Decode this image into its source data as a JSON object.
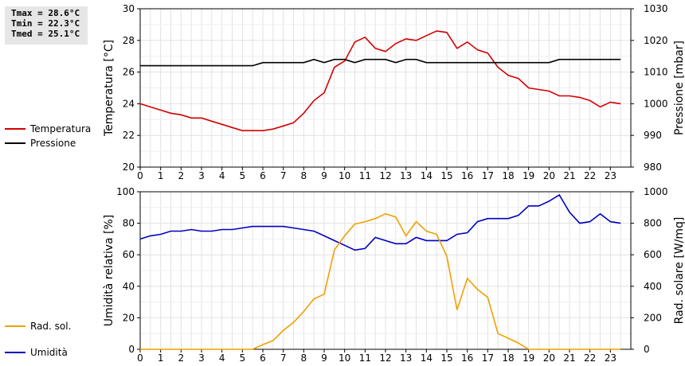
{
  "stats": {
    "tmax": "Tmax = 28.6°C",
    "tmin": "Tmin = 22.3°C",
    "tmed": "Tmed = 25.1°C"
  },
  "chart_data": [
    {
      "type": "line",
      "ylabel": "Temperatura [°C]",
      "y2label": "Pressione [mbar]",
      "xlim": [
        0,
        24
      ],
      "ylim": [
        20,
        30
      ],
      "y2lim": [
        980,
        1030
      ],
      "x_ticks": [
        "0",
        "1",
        "2",
        "3",
        "4",
        "5",
        "6",
        "7",
        "8",
        "9",
        "10",
        "11",
        "12",
        "13",
        "14",
        "15",
        "16",
        "17",
        "18",
        "19",
        "20",
        "21",
        "22",
        "23"
      ],
      "y_ticks": [
        "20",
        "22",
        "24",
        "26",
        "28",
        "30"
      ],
      "y2_ticks": [
        "980",
        "990",
        "1000",
        "1010",
        "1020",
        "1030"
      ],
      "grid": true,
      "legend_position": "left",
      "series": [
        {
          "name": "Temperatura",
          "axis": "left",
          "color": "#d40000",
          "x": [
            0,
            0.5,
            1,
            1.5,
            2,
            2.5,
            3,
            3.5,
            4,
            4.5,
            5,
            5.5,
            6,
            6.5,
            7,
            7.5,
            8,
            8.5,
            9,
            9.5,
            10,
            10.5,
            11,
            11.5,
            12,
            12.5,
            13,
            13.5,
            14,
            14.5,
            15,
            15.5,
            16,
            16.5,
            17,
            17.5,
            18,
            18.5,
            19,
            19.5,
            20,
            20.5,
            21,
            21.5,
            22,
            22.5,
            23,
            23.5
          ],
          "values": [
            24.0,
            23.8,
            23.6,
            23.4,
            23.3,
            23.1,
            23.1,
            22.9,
            22.7,
            22.5,
            22.3,
            22.3,
            22.3,
            22.4,
            22.6,
            22.8,
            23.4,
            24.2,
            24.7,
            26.3,
            26.7,
            27.9,
            28.2,
            27.5,
            27.3,
            27.8,
            28.1,
            28.0,
            28.3,
            28.6,
            28.5,
            27.5,
            27.9,
            27.4,
            27.2,
            26.3,
            25.8,
            25.6,
            25.0,
            24.9,
            24.8,
            24.5,
            24.5,
            24.4,
            24.2,
            23.8,
            24.1,
            24.0
          ]
        },
        {
          "name": "Pressione",
          "axis": "right",
          "color": "#000000",
          "x": [
            0,
            0.5,
            1,
            1.5,
            2,
            2.5,
            3,
            3.5,
            4,
            4.5,
            5,
            5.5,
            6,
            6.5,
            7,
            7.5,
            8,
            8.5,
            9,
            9.5,
            10,
            10.5,
            11,
            11.5,
            12,
            12.5,
            13,
            13.5,
            14,
            14.5,
            15,
            15.5,
            16,
            16.5,
            17,
            17.5,
            18,
            18.5,
            19,
            19.5,
            20,
            20.5,
            21,
            21.5,
            22,
            22.5,
            23,
            23.5
          ],
          "values": [
            1012,
            1012,
            1012,
            1012,
            1012,
            1012,
            1012,
            1012,
            1012,
            1012,
            1012,
            1012,
            1013,
            1013,
            1013,
            1013,
            1013,
            1014,
            1013,
            1014,
            1014,
            1013,
            1014,
            1014,
            1014,
            1013,
            1014,
            1014,
            1013,
            1013,
            1013,
            1013,
            1013,
            1013,
            1013,
            1013,
            1013,
            1013,
            1013,
            1013,
            1013,
            1014,
            1014,
            1014,
            1014,
            1014,
            1014,
            1014
          ]
        }
      ]
    },
    {
      "type": "line",
      "ylabel": "Umidità relativa [%]",
      "y2label": "Rad. solare [W/mq]",
      "xlim": [
        0,
        24
      ],
      "ylim": [
        0,
        100
      ],
      "y2lim": [
        0,
        1000
      ],
      "x_ticks": [
        "0",
        "1",
        "2",
        "3",
        "4",
        "5",
        "6",
        "7",
        "8",
        "9",
        "10",
        "11",
        "12",
        "13",
        "14",
        "15",
        "16",
        "17",
        "18",
        "19",
        "20",
        "21",
        "22",
        "23"
      ],
      "y_ticks": [
        "0",
        "20",
        "40",
        "60",
        "80",
        "100"
      ],
      "y2_ticks": [
        "0",
        "200",
        "400",
        "600",
        "800",
        "1000"
      ],
      "grid": true,
      "legend_position": "left",
      "series": [
        {
          "name": "Umidità",
          "axis": "left",
          "color": "#0000c0",
          "x": [
            0,
            0.5,
            1,
            1.5,
            2,
            2.5,
            3,
            3.5,
            4,
            4.5,
            5,
            5.5,
            6,
            6.5,
            7,
            7.5,
            8,
            8.5,
            9,
            9.5,
            10,
            10.5,
            11,
            11.5,
            12,
            12.5,
            13,
            13.5,
            14,
            14.5,
            15,
            15.5,
            16,
            16.5,
            17,
            17.5,
            18,
            18.5,
            19,
            19.5,
            20,
            20.5,
            21,
            21.5,
            22,
            22.5,
            23,
            23.5
          ],
          "values": [
            70,
            72,
            73,
            75,
            75,
            76,
            75,
            75,
            76,
            76,
            77,
            78,
            78,
            78,
            78,
            77,
            76,
            75,
            72,
            69,
            66,
            63,
            64,
            71,
            69,
            67,
            67,
            71,
            69,
            69,
            69,
            73,
            74,
            81,
            83,
            83,
            83,
            85,
            91,
            91,
            94,
            98,
            87,
            80,
            81,
            86,
            81,
            80
          ]
        },
        {
          "name": "Rad. sol.",
          "axis": "right",
          "color": "#f0a000",
          "x": [
            0,
            0.5,
            1,
            1.5,
            2,
            2.5,
            3,
            3.5,
            4,
            4.5,
            5,
            5.5,
            6,
            6.5,
            7,
            7.5,
            8,
            8.5,
            9,
            9.5,
            10,
            10.5,
            11,
            11.5,
            12,
            12.5,
            13,
            13.5,
            14,
            14.5,
            15,
            15.5,
            16,
            16.5,
            17,
            17.5,
            18,
            18.5,
            19,
            19.5,
            20,
            20.5,
            21,
            21.5,
            22,
            22.5,
            23,
            23.5
          ],
          "values": [
            0,
            0,
            0,
            0,
            0,
            0,
            0,
            0,
            0,
            0,
            0,
            0,
            30,
            55,
            120,
            170,
            240,
            320,
            350,
            630,
            720,
            795,
            810,
            830,
            860,
            840,
            720,
            810,
            750,
            730,
            590,
            250,
            450,
            380,
            330,
            100,
            70,
            40,
            0,
            0,
            0,
            0,
            0,
            0,
            0,
            0,
            0,
            0
          ]
        }
      ]
    }
  ]
}
